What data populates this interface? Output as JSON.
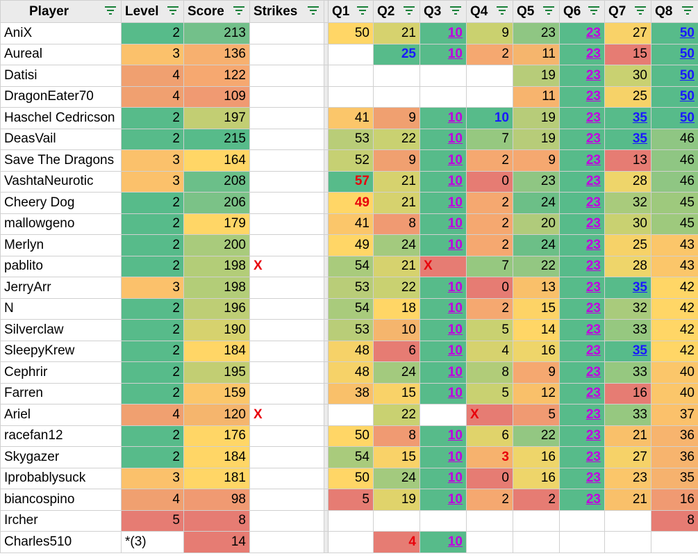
{
  "headers": [
    "Player",
    "Level",
    "Score",
    "Strikes",
    "Q1",
    "Q2",
    "Q3",
    "Q4",
    "Q5",
    "Q6",
    "Q7",
    "Q8"
  ],
  "rows": [
    {
      "player": "AniX",
      "level": "2",
      "score": "213",
      "strikes": "",
      "q": [
        "50",
        "21",
        "10",
        "9",
        "23",
        "23",
        "27",
        "50"
      ]
    },
    {
      "player": "Aureal",
      "level": "3",
      "score": "136",
      "strikes": "",
      "q": [
        "",
        "25",
        "10",
        "2",
        "11",
        "23",
        "15",
        "50"
      ]
    },
    {
      "player": "Datisi",
      "level": "4",
      "score": "122",
      "strikes": "",
      "q": [
        "",
        "",
        "",
        "",
        "19",
        "23",
        "30",
        "50"
      ]
    },
    {
      "player": "DragonEater70",
      "level": "4",
      "score": "109",
      "strikes": "",
      "q": [
        "",
        "",
        "",
        "",
        "11",
        "23",
        "25",
        "50"
      ]
    },
    {
      "player": "Haschel Cedricson",
      "level": "2",
      "score": "197",
      "strikes": "",
      "q": [
        "41",
        "9",
        "10",
        "10",
        "19",
        "23",
        "35",
        "50"
      ]
    },
    {
      "player": "DeasVail",
      "level": "2",
      "score": "215",
      "strikes": "",
      "q": [
        "53",
        "22",
        "10",
        "7",
        "19",
        "23",
        "35",
        "46"
      ]
    },
    {
      "player": "Save The Dragons",
      "level": "3",
      "score": "164",
      "strikes": "",
      "q": [
        "52",
        "9",
        "10",
        "2",
        "9",
        "23",
        "13",
        "46"
      ]
    },
    {
      "player": "VashtaNeurotic",
      "level": "3",
      "score": "208",
      "strikes": "",
      "q": [
        "57",
        "21",
        "10",
        "0",
        "23",
        "23",
        "28",
        "46"
      ]
    },
    {
      "player": "Cheery Dog",
      "level": "2",
      "score": "206",
      "strikes": "",
      "q": [
        "49",
        "21",
        "10",
        "2",
        "24",
        "23",
        "32",
        "45"
      ]
    },
    {
      "player": "mallowgeno",
      "level": "2",
      "score": "179",
      "strikes": "",
      "q": [
        "41",
        "8",
        "10",
        "2",
        "20",
        "23",
        "30",
        "45"
      ]
    },
    {
      "player": "Merlyn",
      "level": "2",
      "score": "200",
      "strikes": "",
      "q": [
        "49",
        "24",
        "10",
        "2",
        "24",
        "23",
        "25",
        "43"
      ]
    },
    {
      "player": "pablito",
      "level": "2",
      "score": "198",
      "strikes": "X",
      "q": [
        "54",
        "21",
        "X",
        "7",
        "22",
        "23",
        "28",
        "43"
      ]
    },
    {
      "player": "JerryArr",
      "level": "3",
      "score": "198",
      "strikes": "",
      "q": [
        "53",
        "22",
        "10",
        "0",
        "13",
        "23",
        "35",
        "42"
      ]
    },
    {
      "player": "N",
      "level": "2",
      "score": "196",
      "strikes": "",
      "q": [
        "54",
        "18",
        "10",
        "2",
        "15",
        "23",
        "32",
        "42"
      ]
    },
    {
      "player": "Silverclaw",
      "level": "2",
      "score": "190",
      "strikes": "",
      "q": [
        "53",
        "10",
        "10",
        "5",
        "14",
        "23",
        "33",
        "42"
      ]
    },
    {
      "player": "SleepyKrew",
      "level": "2",
      "score": "184",
      "strikes": "",
      "q": [
        "48",
        "6",
        "10",
        "4",
        "16",
        "23",
        "35",
        "42"
      ]
    },
    {
      "player": "Cephrir",
      "level": "2",
      "score": "195",
      "strikes": "",
      "q": [
        "48",
        "24",
        "10",
        "8",
        "9",
        "23",
        "33",
        "40"
      ]
    },
    {
      "player": "Farren",
      "level": "2",
      "score": "159",
      "strikes": "",
      "q": [
        "38",
        "15",
        "10",
        "5",
        "12",
        "23",
        "16",
        "40"
      ]
    },
    {
      "player": "Ariel",
      "level": "4",
      "score": "120",
      "strikes": "X",
      "q": [
        "",
        "22",
        "",
        "X",
        "5",
        "23",
        "33",
        "37"
      ]
    },
    {
      "player": "racefan12",
      "level": "2",
      "score": "176",
      "strikes": "",
      "q": [
        "50",
        "8",
        "10",
        "6",
        "22",
        "23",
        "21",
        "36"
      ]
    },
    {
      "player": "Skygazer",
      "level": "2",
      "score": "184",
      "strikes": "",
      "q": [
        "54",
        "15",
        "10",
        "3",
        "16",
        "23",
        "27",
        "36"
      ]
    },
    {
      "player": "Iprobablysuck",
      "level": "3",
      "score": "181",
      "strikes": "",
      "q": [
        "50",
        "24",
        "10",
        "0",
        "16",
        "23",
        "23",
        "35"
      ]
    },
    {
      "player": "biancospino",
      "level": "4",
      "score": "98",
      "strikes": "",
      "q": [
        "5",
        "19",
        "10",
        "2",
        "2",
        "23",
        "21",
        "16"
      ]
    },
    {
      "player": "Ircher",
      "level": "5",
      "score": "8",
      "strikes": "",
      "q": [
        "",
        "",
        "",
        "",
        "",
        "",
        "",
        "8"
      ]
    },
    {
      "player": "Charles510",
      "level": "*(3)",
      "score": "14",
      "strikes": "",
      "q": [
        "",
        "4",
        "10",
        "",
        "",
        "",
        "",
        ""
      ]
    }
  ],
  "rowBg": [
    {
      "level": "#57bb8a",
      "score": "#73c08a",
      "q": [
        "#ffd666",
        "#d6d26e",
        "#57bb8a",
        "#cad16f",
        "#8fc683",
        "#57bb8a",
        "#f9d268",
        "#57bb8a"
      ]
    },
    {
      "level": "#fbc16b",
      "score": "#f7b06f",
      "q": [
        "#ffffff",
        "#57bb8a",
        "#57bb8a",
        "#f5a870",
        "#f5b56d",
        "#57bb8a",
        "#e67c73",
        "#57bb8a"
      ]
    },
    {
      "level": "#f0a070",
      "score": "#f6a870",
      "q": [
        "#ffffff",
        "#ffffff",
        "#ffffff",
        "#ffffff",
        "#b7cc79",
        "#57bb8a",
        "#c9d171",
        "#57bb8a"
      ]
    },
    {
      "level": "#f0a070",
      "score": "#f09a72",
      "q": [
        "#ffffff",
        "#ffffff",
        "#ffffff",
        "#ffffff",
        "#f7b46e",
        "#57bb8a",
        "#f6d268",
        "#57bb8a"
      ]
    },
    {
      "level": "#57bb8a",
      "score": "#c2ce73",
      "q": [
        "#fbc66a",
        "#f0a070",
        "#57bb8a",
        "#57bb8a",
        "#b7cc79",
        "#57bb8a",
        "#57bb8a",
        "#57bb8a"
      ]
    },
    {
      "level": "#57bb8a",
      "score": "#57bb8a",
      "q": [
        "#b9cd78",
        "#c9d171",
        "#57bb8a",
        "#96c880",
        "#b7cc79",
        "#57bb8a",
        "#57bb8a",
        "#8fc683"
      ]
    },
    {
      "level": "#fbc16b",
      "score": "#ffd666",
      "q": [
        "#c6d073",
        "#f0a070",
        "#57bb8a",
        "#f5a870",
        "#f5a870",
        "#57bb8a",
        "#e67c73",
        "#8fc683"
      ]
    },
    {
      "level": "#fbc16b",
      "score": "#6bbf89",
      "q": [
        "#57bb8a",
        "#d6d26e",
        "#57bb8a",
        "#e67c73",
        "#8fc683",
        "#57bb8a",
        "#eed56a",
        "#8fc683"
      ]
    },
    {
      "level": "#57bb8a",
      "score": "#7bc287",
      "q": [
        "#ffd666",
        "#d6d26e",
        "#57bb8a",
        "#f5a870",
        "#6cbf87",
        "#57bb8a",
        "#a9cb7c",
        "#9ec97d"
      ]
    },
    {
      "level": "#57bb8a",
      "score": "#ffd666",
      "q": [
        "#fbc66a",
        "#f09a72",
        "#57bb8a",
        "#f5a870",
        "#b0cb7b",
        "#57bb8a",
        "#c9d171",
        "#9ec97d"
      ]
    },
    {
      "level": "#57bb8a",
      "score": "#a9cb7c",
      "q": [
        "#ffd666",
        "#a3ca7e",
        "#57bb8a",
        "#f5a870",
        "#6cbf87",
        "#57bb8a",
        "#f6d268",
        "#fbc66a"
      ]
    },
    {
      "level": "#57bb8a",
      "score": "#b3cd78",
      "q": [
        "#a9cb7c",
        "#d6d26e",
        "#e67c73",
        "#96c880",
        "#93c782",
        "#57bb8a",
        "#eed56a",
        "#fbc66a"
      ]
    },
    {
      "level": "#fbc16b",
      "score": "#b3cd78",
      "q": [
        "#b9cd78",
        "#c9d171",
        "#57bb8a",
        "#e67c73",
        "#f9c06a",
        "#57bb8a",
        "#57bb8a",
        "#ffd666"
      ]
    },
    {
      "level": "#57bb8a",
      "score": "#bece75",
      "q": [
        "#a9cb7c",
        "#ffd666",
        "#57bb8a",
        "#f5a870",
        "#fdd366",
        "#57bb8a",
        "#a9cb7c",
        "#ffd666"
      ]
    },
    {
      "level": "#57bb8a",
      "score": "#d6d26e",
      "q": [
        "#b9cd78",
        "#f5b56d",
        "#57bb8a",
        "#c9d171",
        "#ffd666",
        "#57bb8a",
        "#96c880",
        "#ffd666"
      ]
    },
    {
      "level": "#57bb8a",
      "score": "#ffd666",
      "q": [
        "#f6d268",
        "#e67c73",
        "#57bb8a",
        "#d6d26e",
        "#eed56a",
        "#57bb8a",
        "#57bb8a",
        "#ffd666"
      ]
    },
    {
      "level": "#57bb8a",
      "score": "#c2ce73",
      "q": [
        "#f6d268",
        "#a3ca7e",
        "#57bb8a",
        "#b1cc79",
        "#f5a870",
        "#57bb8a",
        "#96c880",
        "#fbc66a"
      ]
    },
    {
      "level": "#57bb8a",
      "score": "#fbc66a",
      "q": [
        "#f9c06a",
        "#f9d268",
        "#57bb8a",
        "#c9d171",
        "#f9c06a",
        "#57bb8a",
        "#e67c73",
        "#fbc66a"
      ]
    },
    {
      "level": "#f0a070",
      "score": "#f5b56d",
      "q": [
        "#ffffff",
        "#c9d171",
        "#ffffff",
        "#e67c73",
        "#f09a72",
        "#57bb8a",
        "#96c880",
        "#fbc16b"
      ]
    },
    {
      "level": "#57bb8a",
      "score": "#ffd666",
      "q": [
        "#ffd666",
        "#f09a72",
        "#57bb8a",
        "#e0d36b",
        "#93c782",
        "#57bb8a",
        "#f9c06a",
        "#f7b46e"
      ]
    },
    {
      "level": "#57bb8a",
      "score": "#ffd666",
      "q": [
        "#a9cb7c",
        "#f9d268",
        "#57bb8a",
        "#f6b26e",
        "#eed56a",
        "#57bb8a",
        "#f6d268",
        "#f7b46e"
      ]
    },
    {
      "level": "#fbc16b",
      "score": "#ffd666",
      "q": [
        "#ffd666",
        "#a3ca7e",
        "#57bb8a",
        "#e67c73",
        "#eed56a",
        "#57bb8a",
        "#fbc66a",
        "#f6b26e"
      ]
    },
    {
      "level": "#f0a070",
      "score": "#f09a72",
      "q": [
        "#e67c73",
        "#e0d36b",
        "#57bb8a",
        "#f5a870",
        "#e67c73",
        "#57bb8a",
        "#f9c06a",
        "#f09a72"
      ]
    },
    {
      "level": "#e67c73",
      "score": "#e67c73",
      "q": [
        "#ffffff",
        "#ffffff",
        "#ffffff",
        "#ffffff",
        "#ffffff",
        "#ffffff",
        "#ffffff",
        "#e67c73"
      ]
    },
    {
      "level": "#ffffff",
      "score": "#e67c73",
      "q": [
        "#ffffff",
        "#e67c73",
        "#57bb8a",
        "#ffffff",
        "#ffffff",
        "#ffffff",
        "#ffffff",
        "#ffffff"
      ]
    }
  ],
  "styles": {
    "red": [
      "7.0",
      "8.0",
      "11.2",
      "11.2",
      "3.0",
      "18.2",
      "20.3",
      "23.4",
      "24.0",
      "24.1"
    ],
    "blue": [
      "1.1",
      "4.3",
      "7.0"
    ],
    "bluelink": [
      "0.7",
      "1.7",
      "2.7",
      "3.7",
      "4.6",
      "4.7",
      "5.6",
      "12.6",
      "15.6"
    ],
    "magenta_cols": [
      2,
      5
    ]
  }
}
